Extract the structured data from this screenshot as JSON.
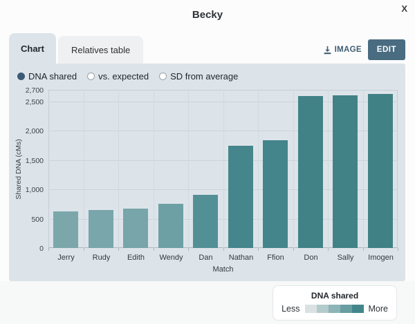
{
  "modal": {
    "title": "Becky",
    "close_label": "X"
  },
  "tabs": [
    {
      "label": "Chart",
      "active": true
    },
    {
      "label": "Relatives table",
      "active": false
    }
  ],
  "actions": {
    "image_label": "IMAGE",
    "edit_label": "EDIT"
  },
  "controls": {
    "radios": [
      {
        "label": "DNA shared",
        "selected": true
      },
      {
        "label": "vs. expected",
        "selected": false
      },
      {
        "label": "SD from average",
        "selected": false
      }
    ]
  },
  "chart_data": {
    "type": "bar",
    "categories": [
      "Jerry",
      "Rudy",
      "Edith",
      "Wendy",
      "Dan",
      "Nathan",
      "Ffion",
      "Don",
      "Sally",
      "Imogen"
    ],
    "values": [
      620,
      650,
      670,
      760,
      910,
      1740,
      1840,
      2590,
      2600,
      2630
    ],
    "bar_colors": [
      "#7ba7ab",
      "#79a6aa",
      "#77a5a9",
      "#6da0a5",
      "#529096",
      "#44868b",
      "#43858a",
      "#418287",
      "#418287",
      "#408186"
    ],
    "xlabel": "Match",
    "ylabel": "Shared DNA (cMs)",
    "ylim": [
      0,
      2700
    ],
    "yticks": [
      0,
      500,
      1000,
      1500,
      2000,
      2500,
      2700
    ],
    "ytick_labels": [
      "0",
      "500",
      "1,000",
      "1,500",
      "2,000",
      "2,500",
      "2,700"
    ],
    "grid": true,
    "legend_position": "bottom-right"
  },
  "legend": {
    "title": "DNA shared",
    "less_label": "Less",
    "more_label": "More",
    "swatches": [
      "#d9e1e3",
      "#b3cbcd",
      "#8db4b6",
      "#689da1",
      "#42868b"
    ]
  },
  "colors": {
    "panel_bg": "#dce4ea",
    "accent": "#4a6c81",
    "radio_selected": "#3b5a74",
    "link": "#3f5d73"
  }
}
